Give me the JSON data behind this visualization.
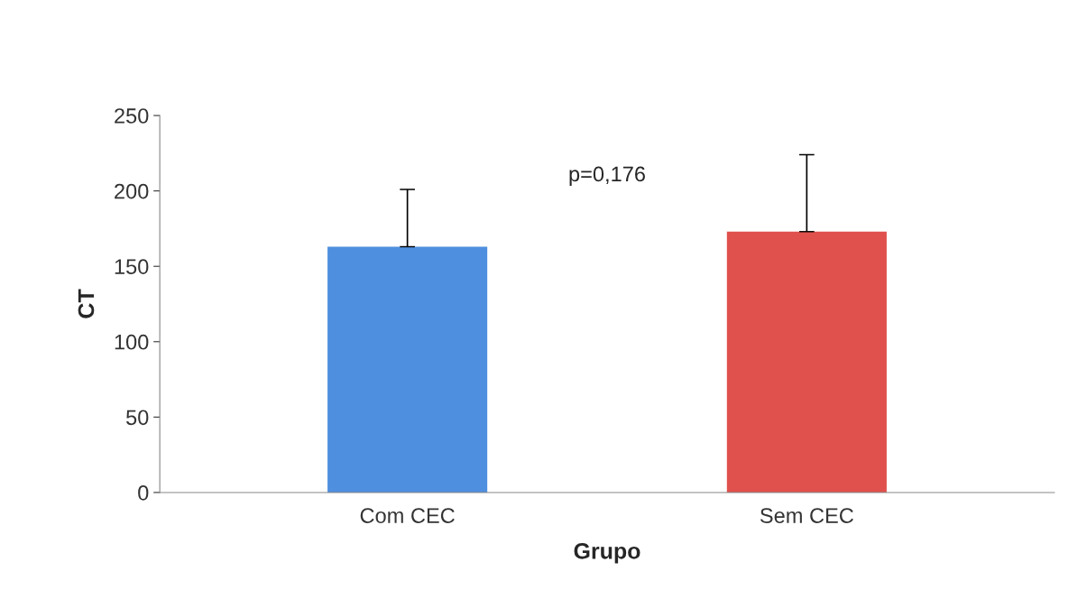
{
  "chart_data": {
    "type": "bar",
    "xlabel": "Grupo",
    "ylabel": "CT",
    "categories": [
      "Com CEC",
      "Sem CEC"
    ],
    "values": [
      163,
      173
    ],
    "colors": [
      "#4f8fdf",
      "#e0504c"
    ],
    "errors": [
      [
        163,
        201
      ],
      [
        173,
        224
      ]
    ],
    "ylim": [
      0,
      250
    ],
    "yticks": [
      0,
      50,
      100,
      150,
      200,
      250
    ],
    "annotations": [
      "p=0,176"
    ],
    "grid": false,
    "legend": false
  }
}
